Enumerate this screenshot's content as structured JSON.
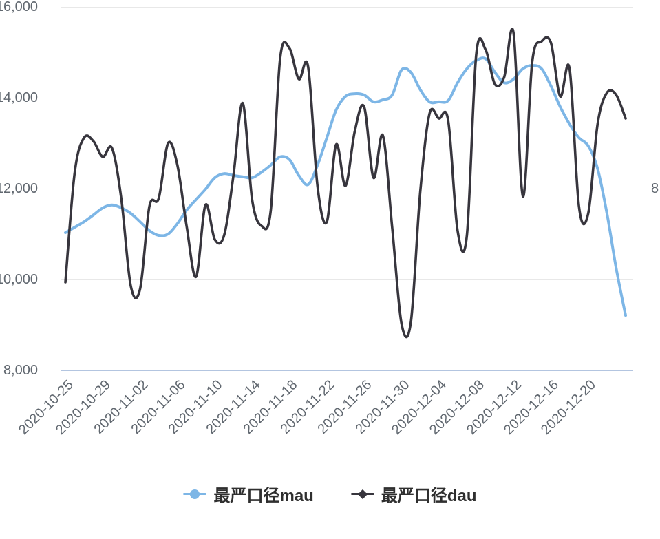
{
  "chart": {
    "background": "#ffffff",
    "grid_color": "#e8e8e8",
    "axis_line_color": "#b3c5e0",
    "axis_label_color": "#60676f",
    "series_colors": {
      "mau": "#7db6e6",
      "dau": "#37353d"
    },
    "y_axis_left": {
      "min": 8000,
      "max": 16000,
      "labels": [
        "16,000",
        "14,000",
        "12,000",
        "10,000",
        "8,000"
      ]
    },
    "y_axis_right": {
      "min": 4000,
      "max": 12000,
      "visible_label": {
        "text": "8",
        "grid_index": 2
      }
    },
    "x_axis": {
      "tick_labels": [
        "2020-10-25",
        "2020-10-29",
        "2020-11-02",
        "2020-11-06",
        "2020-11-10",
        "2020-11-14",
        "2020-11-18",
        "2020-11-22",
        "2020-11-26",
        "2020-11-30",
        "2020-12-04",
        "2020-12-08",
        "2020-12-12",
        "2020-12-16",
        "2020-12-20"
      ]
    },
    "legend": [
      {
        "key": "mau",
        "label": "最严口径mau",
        "symbol": "circle"
      },
      {
        "key": "dau",
        "label": "最严口径dau",
        "symbol": "diamond"
      }
    ]
  },
  "chart_data": {
    "type": "line",
    "smooth": true,
    "grid": true,
    "legend_position": "bottom",
    "x": [
      "2020-10-25",
      "2020-10-26",
      "2020-10-27",
      "2020-10-28",
      "2020-10-29",
      "2020-10-30",
      "2020-10-31",
      "2020-11-01",
      "2020-11-02",
      "2020-11-03",
      "2020-11-04",
      "2020-11-05",
      "2020-11-06",
      "2020-11-07",
      "2020-11-08",
      "2020-11-09",
      "2020-11-10",
      "2020-11-11",
      "2020-11-12",
      "2020-11-13",
      "2020-11-14",
      "2020-11-15",
      "2020-11-16",
      "2020-11-17",
      "2020-11-18",
      "2020-11-19",
      "2020-11-20",
      "2020-11-21",
      "2020-11-22",
      "2020-11-23",
      "2020-11-24",
      "2020-11-25",
      "2020-11-26",
      "2020-11-27",
      "2020-11-28",
      "2020-11-29",
      "2020-11-30",
      "2020-12-01",
      "2020-12-02",
      "2020-12-03",
      "2020-12-04",
      "2020-12-05",
      "2020-12-06",
      "2020-12-07",
      "2020-12-08",
      "2020-12-09",
      "2020-12-10",
      "2020-12-11",
      "2020-12-12",
      "2020-12-13",
      "2020-12-14",
      "2020-12-15",
      "2020-12-16",
      "2020-12-17",
      "2020-12-18",
      "2020-12-19",
      "2020-12-20",
      "2020-12-21",
      "2020-12-22",
      "2020-12-23",
      "2020-12-24"
    ],
    "series": [
      {
        "name": "最严口径mau",
        "key": "mau",
        "axis": "left",
        "values": [
          11030,
          11150,
          11270,
          11420,
          11575,
          11640,
          11575,
          11455,
          11270,
          11075,
          10970,
          11000,
          11230,
          11530,
          11760,
          11985,
          12240,
          12330,
          12290,
          12260,
          12240,
          12360,
          12520,
          12700,
          12640,
          12290,
          12090,
          12515,
          13120,
          13730,
          14030,
          14090,
          14060,
          13910,
          13955,
          14060,
          14610,
          14560,
          14180,
          13910,
          13910,
          13940,
          14330,
          14640,
          14820,
          14860,
          14560,
          14330,
          14410,
          14640,
          14710,
          14640,
          14260,
          13800,
          13420,
          13120,
          12940,
          12440,
          11455,
          10240,
          9210
        ]
      },
      {
        "name": "最严口径dau",
        "key": "dau",
        "axis": "right",
        "values": [
          5940,
          8360,
          9120,
          9045,
          8700,
          8890,
          7760,
          5860,
          5790,
          7610,
          7790,
          9000,
          8515,
          7150,
          6060,
          7640,
          6880,
          6970,
          8290,
          9880,
          7760,
          7180,
          7530,
          10860,
          11090,
          10410,
          10680,
          8060,
          7270,
          8970,
          8060,
          9270,
          9800,
          8240,
          9170,
          7150,
          5030,
          5060,
          7910,
          9650,
          9545,
          9500,
          7080,
          6970,
          10940,
          11060,
          10300,
          10455,
          11424,
          7830,
          10790,
          11240,
          11210,
          10030,
          10640,
          7610,
          7455,
          9420,
          10110,
          10060,
          9545
        ]
      }
    ]
  }
}
